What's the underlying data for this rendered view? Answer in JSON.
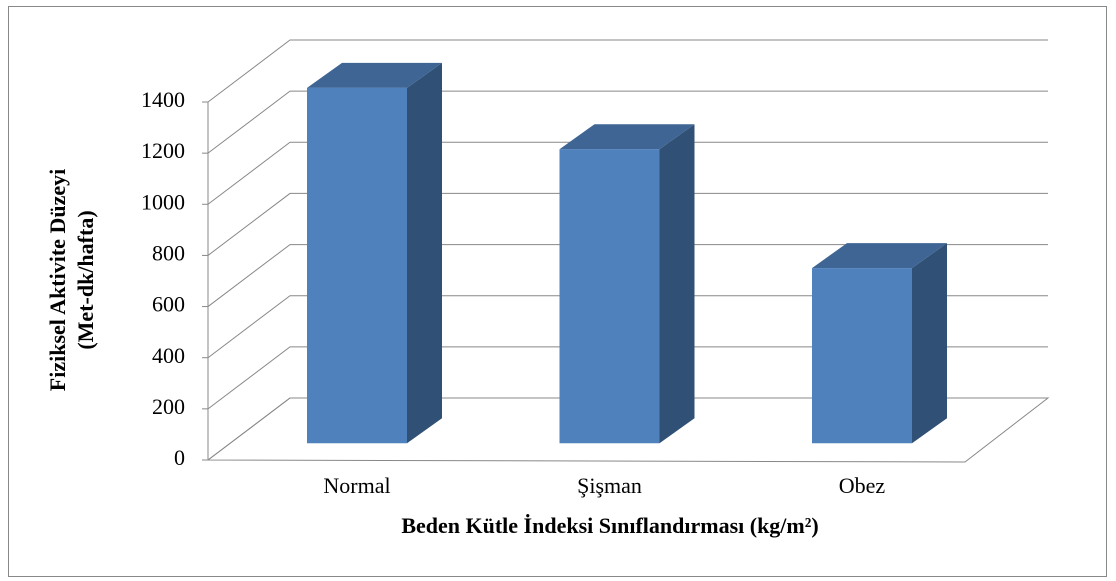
{
  "chart_data": {
    "type": "bar3d",
    "y_label": [
      "Fiziksel Aktivite Düzeyi",
      "(Met-dk/hafta)"
    ],
    "x_label": "Beden Kütle İndeksi Sınıflandırması (kg/m²)",
    "categories": [
      "Normal",
      "Şişman",
      "Obez"
    ],
    "values": [
      1390,
      1150,
      685
    ],
    "color": "#4f81bd",
    "ylim": [
      0,
      1400
    ],
    "yticks": [
      0,
      200,
      400,
      600,
      800,
      1000,
      1200,
      1400
    ],
    "grid": true
  }
}
